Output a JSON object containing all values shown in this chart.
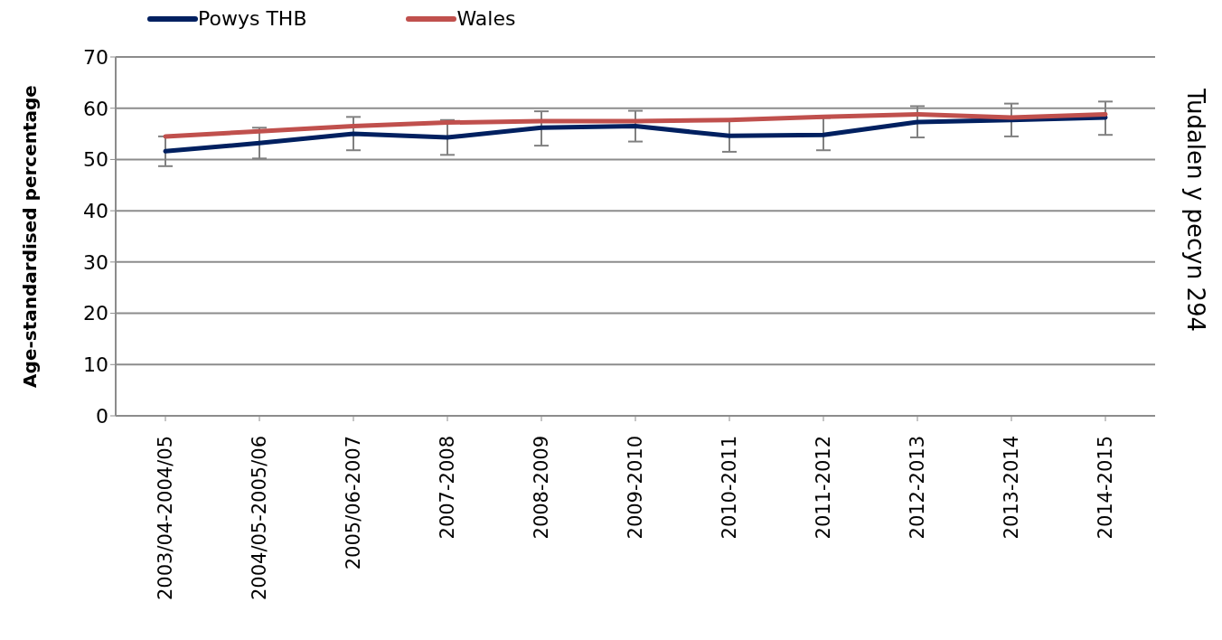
{
  "chart_data": {
    "type": "line",
    "ylabel": "Age-standardised percentage",
    "categories": [
      "2003/04-2004/05",
      "2004/05-2005/06",
      "2005/06-2007",
      "2007-2008",
      "2008-2009",
      "2009-2010",
      "2010-2011",
      "2011-2012",
      "2012-2013",
      "2013-2014",
      "2014-2015"
    ],
    "series": [
      {
        "name": "Powys THB",
        "color": "#002060",
        "values": [
          51.6,
          53.2,
          55.0,
          54.3,
          56.2,
          56.5,
          54.6,
          54.8,
          57.3,
          57.7,
          58.2
        ],
        "errors": [
          [
            48.7,
            54.5
          ],
          [
            50.2,
            56.2
          ],
          [
            51.8,
            58.3
          ],
          [
            50.9,
            57.7
          ],
          [
            52.7,
            59.4
          ],
          [
            53.5,
            59.5
          ],
          [
            51.5,
            57.7
          ],
          [
            51.8,
            58.1
          ],
          [
            54.3,
            60.4
          ],
          [
            54.5,
            60.9
          ],
          [
            54.8,
            61.3
          ]
        ]
      },
      {
        "name": "Wales",
        "color": "#c0504d",
        "values": [
          54.5,
          55.5,
          56.5,
          57.2,
          57.5,
          57.5,
          57.7,
          58.3,
          58.8,
          58.2,
          58.8
        ]
      }
    ],
    "ylim": [
      0,
      70
    ],
    "yticks": [
      0,
      10,
      20,
      30,
      40,
      50,
      60,
      70
    ],
    "grid": "y",
    "legend": "top left",
    "marker": "none",
    "line_style": "solid",
    "annotations": [
      "Tudalen y pecyn 294"
    ]
  }
}
